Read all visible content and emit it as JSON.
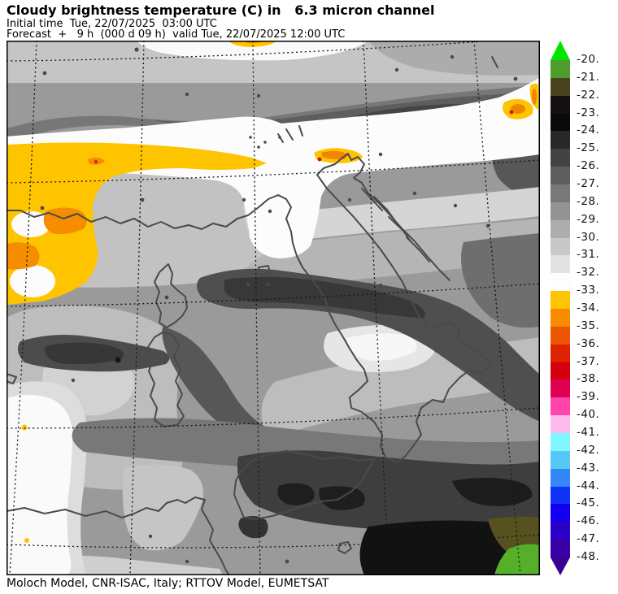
{
  "header": {
    "title": "Cloudy brightness temperature (C) in   6.3 micron channel",
    "initial_time_line": "Initial time  Tue, 22/07/2025  03:00 UTC",
    "forecast_line": "Forecast  +   9 h  (000 d 09 h)  valid Tue, 22/07/2025 12:00 UTC"
  },
  "footer": {
    "credit": "Moloch Model, CNR-ISAC, Italy; RTTOV Model, EUMETSAT"
  },
  "colorbar": {
    "tick_labels": [
      "-20.",
      "-21.",
      "-22.",
      "-23.",
      "-24.",
      "-25.",
      "-26.",
      "-27.",
      "-28.",
      "-29.",
      "-30.",
      "-31.",
      "-32.",
      "-33.",
      "-34.",
      "-35.",
      "-36.",
      "-37.",
      "-38.",
      "-39.",
      "-40.",
      "-41.",
      "-42.",
      "-43.",
      "-44.",
      "-45.",
      "-46.",
      "-47.",
      "-48."
    ],
    "segment_colors": [
      "#4D9C2D",
      "#4A431F",
      "#161111",
      "#0A0A0A",
      "#282828",
      "#434343",
      "#5E5E5E",
      "#787878",
      "#939393",
      "#ADADAD",
      "#C8C8C8",
      "#E2E2E2",
      "#FDFDFD",
      "#FFC400",
      "#F88C00",
      "#EE5500",
      "#DD2200",
      "#D4000F",
      "#DD0055",
      "#FF44AA",
      "#FFBBEE",
      "#80F8FF",
      "#55C8F8",
      "#3388F8",
      "#1133F8",
      "#1100EE",
      "#2B00C8",
      "#3A00A8"
    ],
    "above_range_color": "#00E400",
    "below_range_color": "#3A0090"
  },
  "map_accents": {
    "warm_cloud_gold": "#FFC400",
    "warm_cloud_orange": "#F68C00",
    "corner_green": "#55AF29",
    "corner_olive": "#57511F",
    "coastline_gray": "#4A4A4A"
  }
}
